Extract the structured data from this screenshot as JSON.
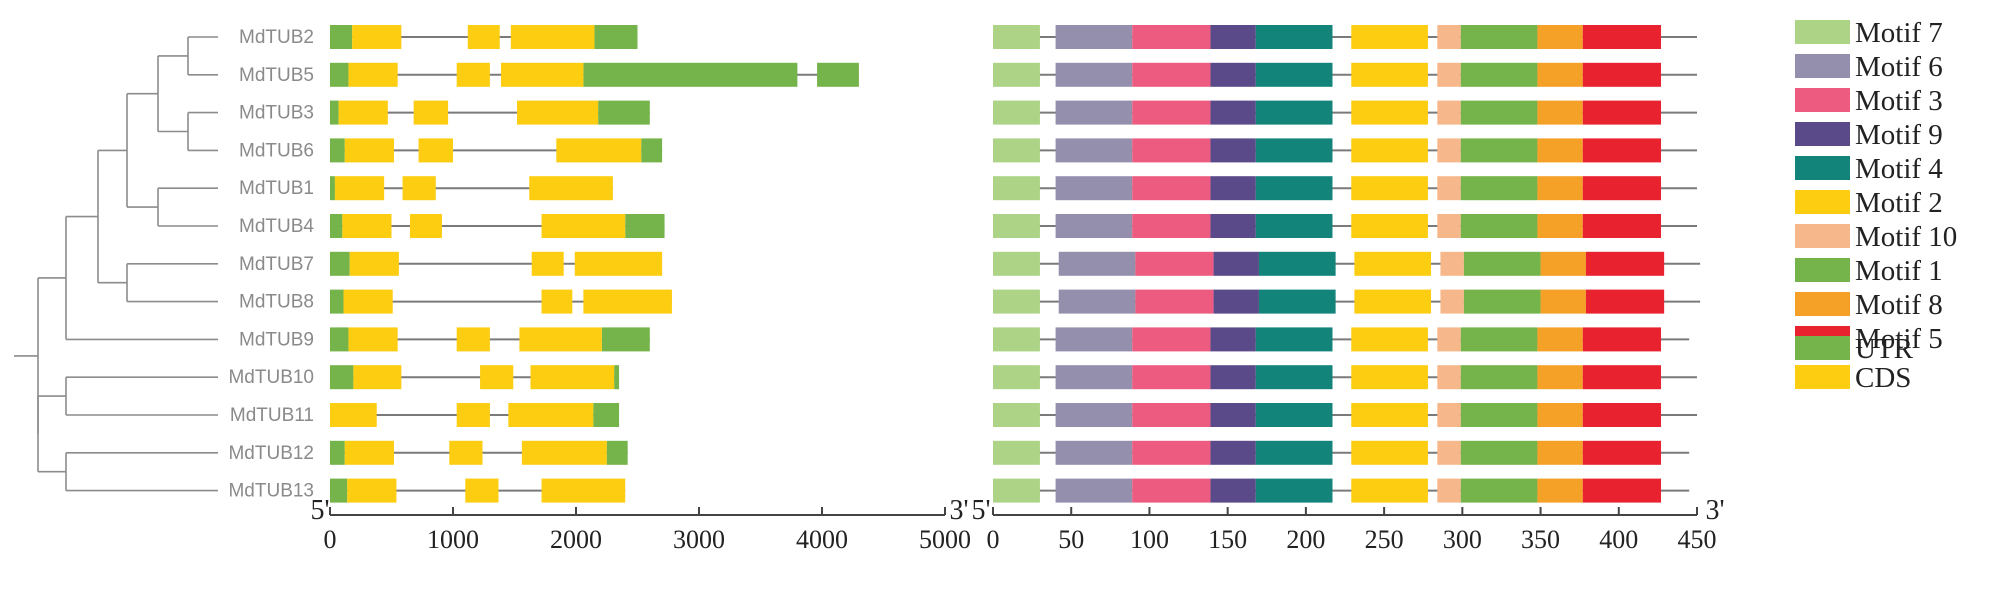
{
  "genes": [
    "MdTUB2",
    "MdTUB5",
    "MdTUB3",
    "MdTUB6",
    "MdTUB1",
    "MdTUB4",
    "MdTUB7",
    "MdTUB8",
    "MdTUB9",
    "MdTUB10",
    "MdTUB11",
    "MdTUB12",
    "MdTUB13"
  ],
  "colors": {
    "utr": "#74b44a",
    "cds": "#fccd10",
    "line": "#7a7a7a",
    "tree": "#8c8c8c",
    "axis": "#444444"
  },
  "gene_structure": {
    "axis_ticks": [
      0,
      1000,
      2000,
      3000,
      4000,
      5000
    ],
    "xlim": [
      0,
      5000
    ],
    "end_labels": {
      "five_prime": "5'",
      "three_prime": "3'"
    },
    "rows": [
      {
        "gene": "MdTUB2",
        "length": 2500,
        "utr": [
          [
            0,
            180
          ],
          [
            2150,
            2500
          ]
        ],
        "cds": [
          [
            180,
            580
          ],
          [
            1120,
            1380
          ],
          [
            1470,
            2150
          ]
        ]
      },
      {
        "gene": "MdTUB5",
        "length": 4300,
        "utr": [
          [
            0,
            150
          ],
          [
            2060,
            3800
          ],
          [
            3960,
            4300
          ]
        ],
        "cds": [
          [
            150,
            550
          ],
          [
            1030,
            1300
          ],
          [
            1390,
            2060
          ]
        ]
      },
      {
        "gene": "MdTUB3",
        "length": 2600,
        "utr": [
          [
            0,
            70
          ],
          [
            2180,
            2600
          ]
        ],
        "cds": [
          [
            70,
            470
          ],
          [
            680,
            960
          ],
          [
            1520,
            2180
          ]
        ]
      },
      {
        "gene": "MdTUB6",
        "length": 2700,
        "utr": [
          [
            0,
            120
          ],
          [
            2530,
            2700
          ]
        ],
        "cds": [
          [
            120,
            520
          ],
          [
            720,
            1000
          ],
          [
            1840,
            2530
          ]
        ]
      },
      {
        "gene": "MdTUB1",
        "length": 2300,
        "utr": [
          [
            0,
            40
          ]
        ],
        "cds": [
          [
            40,
            440
          ],
          [
            590,
            860
          ],
          [
            1620,
            2300
          ]
        ]
      },
      {
        "gene": "MdTUB4",
        "length": 2720,
        "utr": [
          [
            0,
            100
          ],
          [
            2400,
            2720
          ]
        ],
        "cds": [
          [
            100,
            500
          ],
          [
            650,
            910
          ],
          [
            1720,
            2400
          ]
        ]
      },
      {
        "gene": "MdTUB7",
        "length": 2700,
        "utr": [
          [
            0,
            160
          ]
        ],
        "cds": [
          [
            160,
            560
          ],
          [
            1640,
            1900
          ],
          [
            1990,
            2700
          ]
        ]
      },
      {
        "gene": "MdTUB8",
        "length": 2780,
        "utr": [
          [
            0,
            110
          ]
        ],
        "cds": [
          [
            110,
            510
          ],
          [
            1720,
            1970
          ],
          [
            2060,
            2780
          ]
        ]
      },
      {
        "gene": "MdTUB9",
        "length": 2600,
        "utr": [
          [
            0,
            150
          ],
          [
            2210,
            2600
          ]
        ],
        "cds": [
          [
            150,
            550
          ],
          [
            1030,
            1300
          ],
          [
            1540,
            2210
          ]
        ]
      },
      {
        "gene": "MdTUB10",
        "length": 2350,
        "utr": [
          [
            0,
            190
          ],
          [
            2310,
            2350
          ]
        ],
        "cds": [
          [
            190,
            580
          ],
          [
            1220,
            1490
          ],
          [
            1630,
            2310
          ]
        ]
      },
      {
        "gene": "MdTUB11",
        "length": 2350,
        "utr": [
          [
            2140,
            2350
          ]
        ],
        "cds": [
          [
            0,
            380
          ],
          [
            1030,
            1300
          ],
          [
            1450,
            2140
          ]
        ]
      },
      {
        "gene": "MdTUB12",
        "length": 2420,
        "utr": [
          [
            0,
            120
          ],
          [
            2250,
            2420
          ]
        ],
        "cds": [
          [
            120,
            520
          ],
          [
            970,
            1240
          ],
          [
            1560,
            2250
          ]
        ]
      },
      {
        "gene": "MdTUB13",
        "length": 2400,
        "utr": [
          [
            0,
            140
          ]
        ],
        "cds": [
          [
            140,
            540
          ],
          [
            1100,
            1370
          ],
          [
            1720,
            2400
          ]
        ]
      }
    ]
  },
  "motif_structure": {
    "axis_ticks": [
      0,
      50,
      100,
      150,
      200,
      250,
      300,
      350,
      400,
      450
    ],
    "xlim": [
      0,
      450
    ],
    "end_labels": {
      "five_prime": "5'",
      "three_prime": "3'"
    },
    "motif_colors": {
      "Motif 7": "#acd386",
      "Motif 6": "#958fae",
      "Motif 3": "#ed5c80",
      "Motif 9": "#5b4a8a",
      "Motif 4": "#12847a",
      "Motif 2": "#fccd10",
      "Motif 10": "#f6b88a",
      "Motif 1": "#74b44a",
      "Motif 8": "#f5a027",
      "Motif 5": "#e8222e"
    },
    "standard_motifs": [
      {
        "motif": "Motif 7",
        "range": [
          0,
          30
        ]
      },
      {
        "motif": "Motif 6",
        "range": [
          40,
          89
        ]
      },
      {
        "motif": "Motif 3",
        "range": [
          89,
          139
        ]
      },
      {
        "motif": "Motif 9",
        "range": [
          139,
          168
        ]
      },
      {
        "motif": "Motif 4",
        "range": [
          168,
          217
        ]
      },
      {
        "motif": "Motif 2",
        "range": [
          229,
          278
        ]
      },
      {
        "motif": "Motif 10",
        "range": [
          284,
          299
        ]
      },
      {
        "motif": "Motif 1",
        "range": [
          299,
          348
        ]
      },
      {
        "motif": "Motif 8",
        "range": [
          348,
          377
        ]
      },
      {
        "motif": "Motif 5",
        "range": [
          377,
          427
        ]
      }
    ],
    "rows": [
      {
        "gene": "MdTUB2",
        "length": 450,
        "offset": 0
      },
      {
        "gene": "MdTUB5",
        "length": 450,
        "offset": 0
      },
      {
        "gene": "MdTUB3",
        "length": 450,
        "offset": 0
      },
      {
        "gene": "MdTUB6",
        "length": 450,
        "offset": 0
      },
      {
        "gene": "MdTUB1",
        "length": 450,
        "offset": 0
      },
      {
        "gene": "MdTUB4",
        "length": 450,
        "offset": 0
      },
      {
        "gene": "MdTUB7",
        "length": 452,
        "offset": 2
      },
      {
        "gene": "MdTUB8",
        "length": 452,
        "offset": 2
      },
      {
        "gene": "MdTUB9",
        "length": 445,
        "offset": 0
      },
      {
        "gene": "MdTUB10",
        "length": 450,
        "offset": 0
      },
      {
        "gene": "MdTUB11",
        "length": 450,
        "offset": 0
      },
      {
        "gene": "MdTUB12",
        "length": 445,
        "offset": 0
      },
      {
        "gene": "MdTUB13",
        "length": 445,
        "offset": 0
      }
    ]
  },
  "legend": {
    "motifs": [
      "Motif 7",
      "Motif 6",
      "Motif 3",
      "Motif 9",
      "Motif 4",
      "Motif 2",
      "Motif 10",
      "Motif 1",
      "Motif 8",
      "Motif 5"
    ],
    "structure": [
      {
        "label": "UTR",
        "color": "#74b44a"
      },
      {
        "label": "CDS",
        "color": "#fccd10"
      }
    ]
  }
}
